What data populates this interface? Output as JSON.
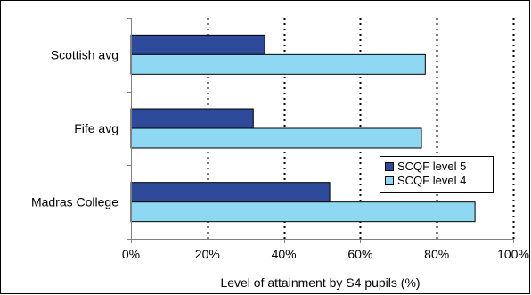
{
  "chart_data": {
    "type": "bar",
    "orientation": "horizontal",
    "categories": [
      "Scottish avg",
      "Fife avg",
      "Madras College"
    ],
    "series": [
      {
        "name": "SCQF level 5",
        "values": [
          35,
          32,
          52
        ],
        "color": "#2e4a9a"
      },
      {
        "name": "SCQF level 4",
        "values": [
          77,
          76,
          90
        ],
        "color": "#8fd8f4"
      }
    ],
    "xlabel": "Level of attainment by S4 pupils (%)",
    "ylabel": "",
    "title": "",
    "xlim": [
      0,
      100
    ],
    "x_ticks": [
      "0%",
      "20%",
      "40%",
      "60%",
      "80%",
      "100%"
    ],
    "legend_position": "right",
    "grid": "vertical dotted"
  }
}
